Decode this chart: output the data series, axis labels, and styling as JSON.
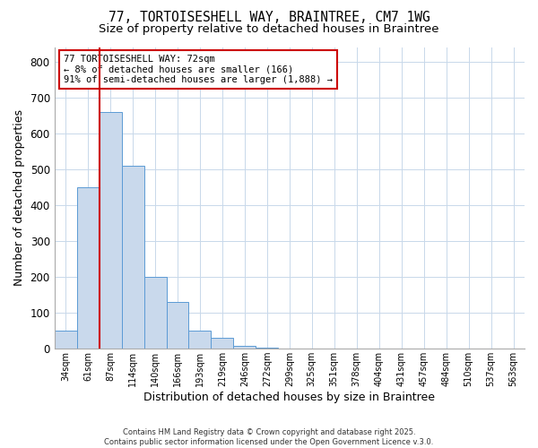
{
  "title": "77, TORTOISESHELL WAY, BRAINTREE, CM7 1WG",
  "subtitle": "Size of property relative to detached houses in Braintree",
  "xlabel": "Distribution of detached houses by size in Braintree",
  "ylabel": "Number of detached properties",
  "categories": [
    "34sqm",
    "61sqm",
    "87sqm",
    "114sqm",
    "140sqm",
    "166sqm",
    "193sqm",
    "219sqm",
    "246sqm",
    "272sqm",
    "299sqm",
    "325sqm",
    "351sqm",
    "378sqm",
    "404sqm",
    "431sqm",
    "457sqm",
    "484sqm",
    "510sqm",
    "537sqm",
    "563sqm"
  ],
  "values": [
    50,
    450,
    660,
    510,
    200,
    130,
    50,
    30,
    8,
    3,
    1,
    0,
    1,
    0,
    0,
    0,
    0,
    0,
    0,
    0,
    0
  ],
  "bar_color": "#c9d9ec",
  "bar_edge_color": "#5b9bd5",
  "red_line_x": 1.5,
  "annotation_text": "77 TORTOISESHELL WAY: 72sqm\n← 8% of detached houses are smaller (166)\n91% of semi-detached houses are larger (1,888) →",
  "annotation_box_color": "#ffffff",
  "annotation_box_edge_color": "#cc0000",
  "ylim": [
    0,
    840
  ],
  "yticks": [
    0,
    100,
    200,
    300,
    400,
    500,
    600,
    700,
    800
  ],
  "background_color": "#ffffff",
  "grid_color": "#c8d8ea",
  "footer_text": "Contains HM Land Registry data © Crown copyright and database right 2025.\nContains public sector information licensed under the Open Government Licence v.3.0.",
  "title_fontsize": 10.5,
  "subtitle_fontsize": 9.5
}
